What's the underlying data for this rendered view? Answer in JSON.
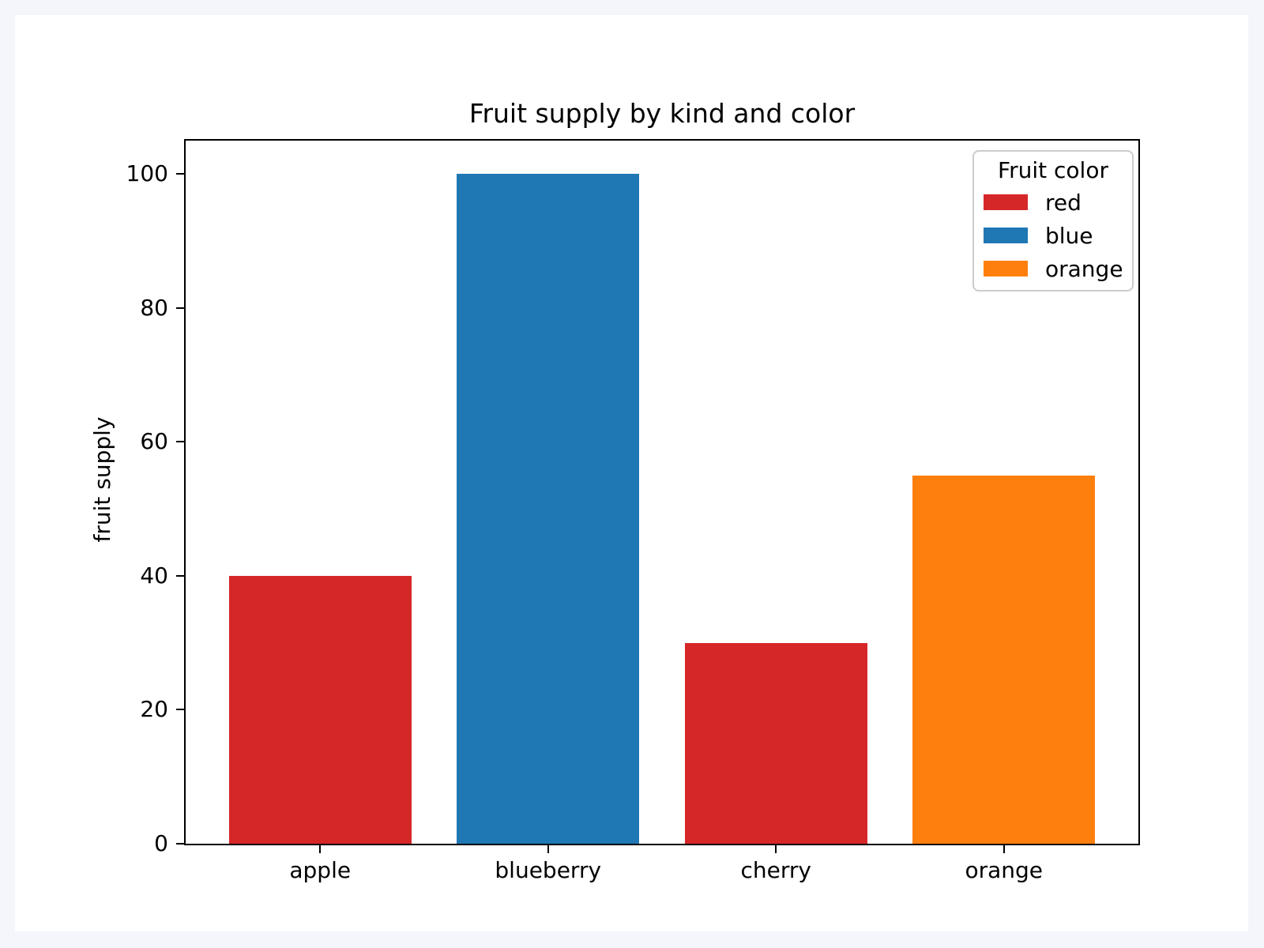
{
  "window": {
    "background_color": "#f5f6fc",
    "figure_background_color": "#ffffff"
  },
  "chart_data": {
    "type": "bar",
    "title": "Fruit supply by kind and color",
    "categories": [
      "apple",
      "blueberry",
      "cherry",
      "orange"
    ],
    "values": [
      40,
      100,
      30,
      55
    ],
    "bar_colors": [
      "#d62728",
      "#1f77b4",
      "#d62728",
      "#ff7f0e"
    ],
    "xlabel": "",
    "ylabel": "fruit supply",
    "ylim": [
      0,
      105
    ],
    "yticks": [
      0,
      20,
      40,
      60,
      80,
      100
    ],
    "grid": false,
    "axis_color": "#000000",
    "bar_width_fraction": 0.8,
    "x_edge_pad_units": 0.59,
    "legend": {
      "title": "Fruit color",
      "position": "upper right",
      "border_color": "#cccccc",
      "entries": [
        {
          "label": "red",
          "color": "#d62728"
        },
        {
          "label": "blue",
          "color": "#1f77b4"
        },
        {
          "label": "orange",
          "color": "#ff7f0e"
        }
      ]
    }
  }
}
